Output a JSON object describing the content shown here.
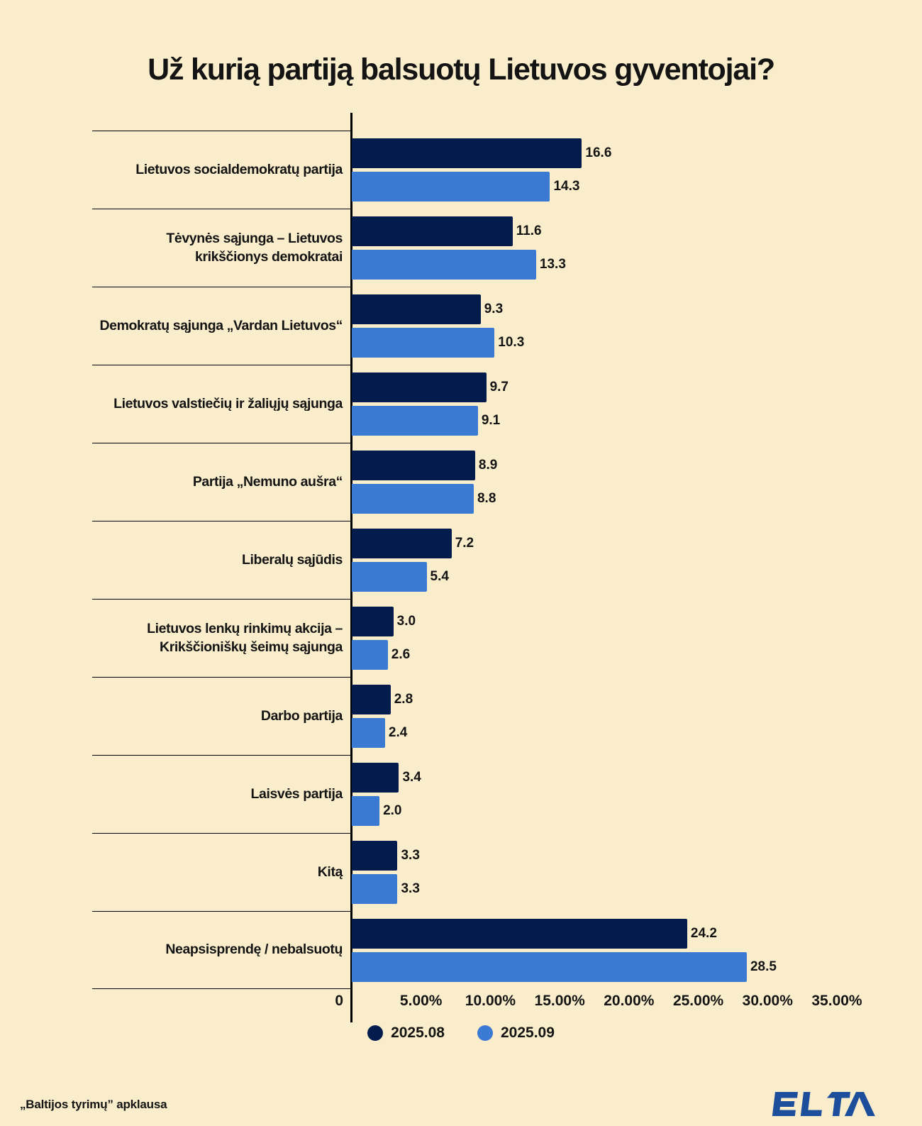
{
  "chart_data": {
    "type": "bar",
    "orientation": "horizontal",
    "title": "Už kurią partiją balsuotų Lietuvos gyventojai?",
    "categories": [
      "Lietuvos socialdemokratų partija",
      "Tėvynės sąjunga – Lietuvos krikščionys demokratai",
      "Demokratų sąjunga „Vardan Lietuvos“",
      "Lietuvos valstiečių ir žaliųjų sąjunga",
      "Partija „Nemuno aušra“",
      "Liberalų sąjūdis",
      "Lietuvos lenkų rinkimų akcija – Krikščioniškų šeimų sąjunga",
      "Darbo partija",
      "Laisvės partija",
      "Kitą",
      "Neapsisprendę / nebalsuotų"
    ],
    "series": [
      {
        "name": "2025.08",
        "color": "#041C4D",
        "values": [
          16.6,
          11.6,
          9.3,
          9.7,
          8.9,
          7.2,
          3.0,
          2.8,
          3.4,
          3.3,
          24.2
        ]
      },
      {
        "name": "2025.09",
        "color": "#3B7AD3",
        "values": [
          14.3,
          13.3,
          10.3,
          9.1,
          8.8,
          5.4,
          2.6,
          2.4,
          2.0,
          3.3,
          28.5
        ]
      }
    ],
    "xlim": [
      0,
      35
    ],
    "x_tick_values": [
      0,
      5,
      10,
      15,
      20,
      25,
      30,
      35
    ],
    "x_tick_labels": [
      "0",
      "5.00%",
      "10.00%",
      "15.00%",
      "20.00%",
      "25.00%",
      "30.00%",
      "35.00%"
    ],
    "value_labels": true,
    "value_label_decimals": 1,
    "grid": false,
    "legend_position": "bottom"
  },
  "colors": {
    "background": "#FAEDCB",
    "series_2025_08": "#041C4D",
    "series_2025_09": "#3B7AD3",
    "axis_line": "#000000",
    "text": "#141414",
    "logo_blue": "#1D4E9B"
  },
  "footer": {
    "source_note": "„Baltijos tyrimų” apklausa",
    "logo_text": "ELTA"
  }
}
